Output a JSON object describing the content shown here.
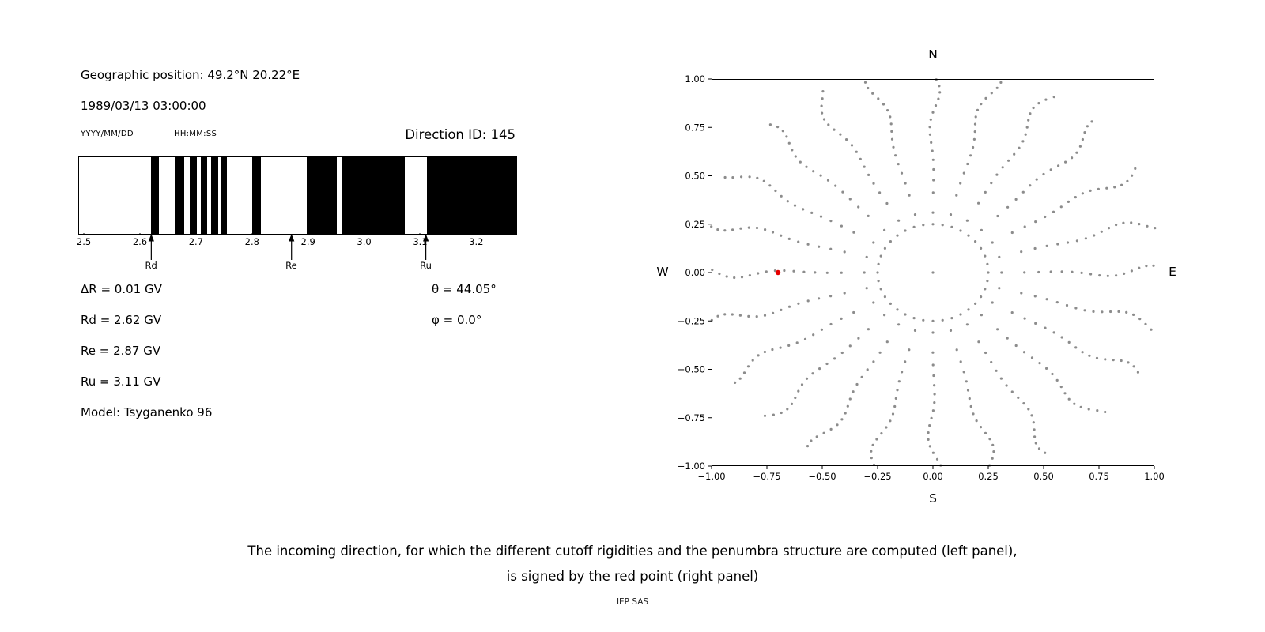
{
  "left_panel": {
    "geo_position": "Geographic position: 49.2°N 20.22°E",
    "datetime": "1989/03/13 03:00:00",
    "date_format_label": "YYYY/MM/DD",
    "time_format_label": "HH:MM:SS",
    "direction_id_label": "Direction ID: 145",
    "info_lines": [
      "ΔR = 0.01 GV",
      "Rd = 2.62 GV",
      "Re = 2.87 GV",
      "Ru = 3.11 GV",
      "Model: Tsyganenko 96"
    ],
    "theta_label": "θ = 44.05°",
    "phi_label": "φ = 0.0°"
  },
  "caption": {
    "line1": "The incoming direction, for which the different cutoff rigidities and the penumbra structure are computed (left panel),",
    "line2": "is signed by the red point (right panel)",
    "credit": "IEP SAS"
  },
  "chart_data": [
    {
      "type": "bar",
      "name": "penumbra-structure",
      "x_range": [
        2.49,
        3.27
      ],
      "x_unit": "GV",
      "ticks": [
        {
          "value": 2.5,
          "label": "2.5"
        },
        {
          "value": 2.6,
          "label": "2.6"
        },
        {
          "value": 2.7,
          "label": "2.7"
        },
        {
          "value": 2.8,
          "label": "2.8"
        },
        {
          "value": 2.9,
          "label": "2.9"
        },
        {
          "value": 3.0,
          "label": "3.0"
        },
        {
          "value": 3.1,
          "label": "3.1"
        },
        {
          "value": 3.2,
          "label": "3.2"
        }
      ],
      "black_bands": [
        [
          2.618,
          2.632
        ],
        [
          2.66,
          2.678
        ],
        [
          2.688,
          2.7
        ],
        [
          2.707,
          2.718
        ],
        [
          2.726,
          2.738
        ],
        [
          2.743,
          2.754
        ],
        [
          2.799,
          2.814
        ],
        [
          2.896,
          2.95
        ],
        [
          2.96,
          3.071
        ],
        [
          3.11,
          3.27
        ]
      ],
      "markers": [
        {
          "label": "Rd",
          "value": 2.62
        },
        {
          "label": "Re",
          "value": 2.87
        },
        {
          "label": "Ru",
          "value": 3.11
        }
      ],
      "band_color": "#000000",
      "background_color": "#ffffff"
    },
    {
      "type": "scatter",
      "name": "incoming-direction-map",
      "xlim": [
        -1,
        1
      ],
      "ylim": [
        -1,
        1
      ],
      "xticks": [
        {
          "value": -1,
          "label": "−1.00"
        },
        {
          "value": -0.75,
          "label": "−0.75"
        },
        {
          "value": -0.5,
          "label": "−0.50"
        },
        {
          "value": -0.25,
          "label": "−0.25"
        },
        {
          "value": 0,
          "label": "0.00"
        },
        {
          "value": 0.25,
          "label": "0.25"
        },
        {
          "value": 0.5,
          "label": "0.50"
        },
        {
          "value": 0.75,
          "label": "0.75"
        },
        {
          "value": 1,
          "label": "1.00"
        }
      ],
      "yticks": [
        {
          "value": -1,
          "label": "−1.00"
        },
        {
          "value": -0.75,
          "label": "−0.75"
        },
        {
          "value": -0.5,
          "label": "−0.50"
        },
        {
          "value": -0.25,
          "label": "−0.25"
        },
        {
          "value": 0,
          "label": "0.00"
        },
        {
          "value": 0.25,
          "label": "0.25"
        },
        {
          "value": 0.5,
          "label": "0.50"
        },
        {
          "value": 0.75,
          "label": "0.75"
        },
        {
          "value": 1,
          "label": "1.00"
        }
      ],
      "compass": {
        "top": "N",
        "bottom": "S",
        "left": "W",
        "right": "E"
      },
      "dot_color": "#8c8c8c",
      "dot_radius": 1.6,
      "red_point": {
        "x": -0.7,
        "y": 0.0,
        "color": "#e60000",
        "radius": 3.2
      },
      "pattern": {
        "spokes": {
          "count": 24,
          "dots_per_spoke": 18,
          "r_start": 0.31,
          "r_end": 1.06,
          "radial_exponent": 0.7,
          "wobble_deg": 2.5
        },
        "inner_ring": {
          "radius": 0.25,
          "count": 36
        },
        "center_dot": true
      }
    }
  ]
}
